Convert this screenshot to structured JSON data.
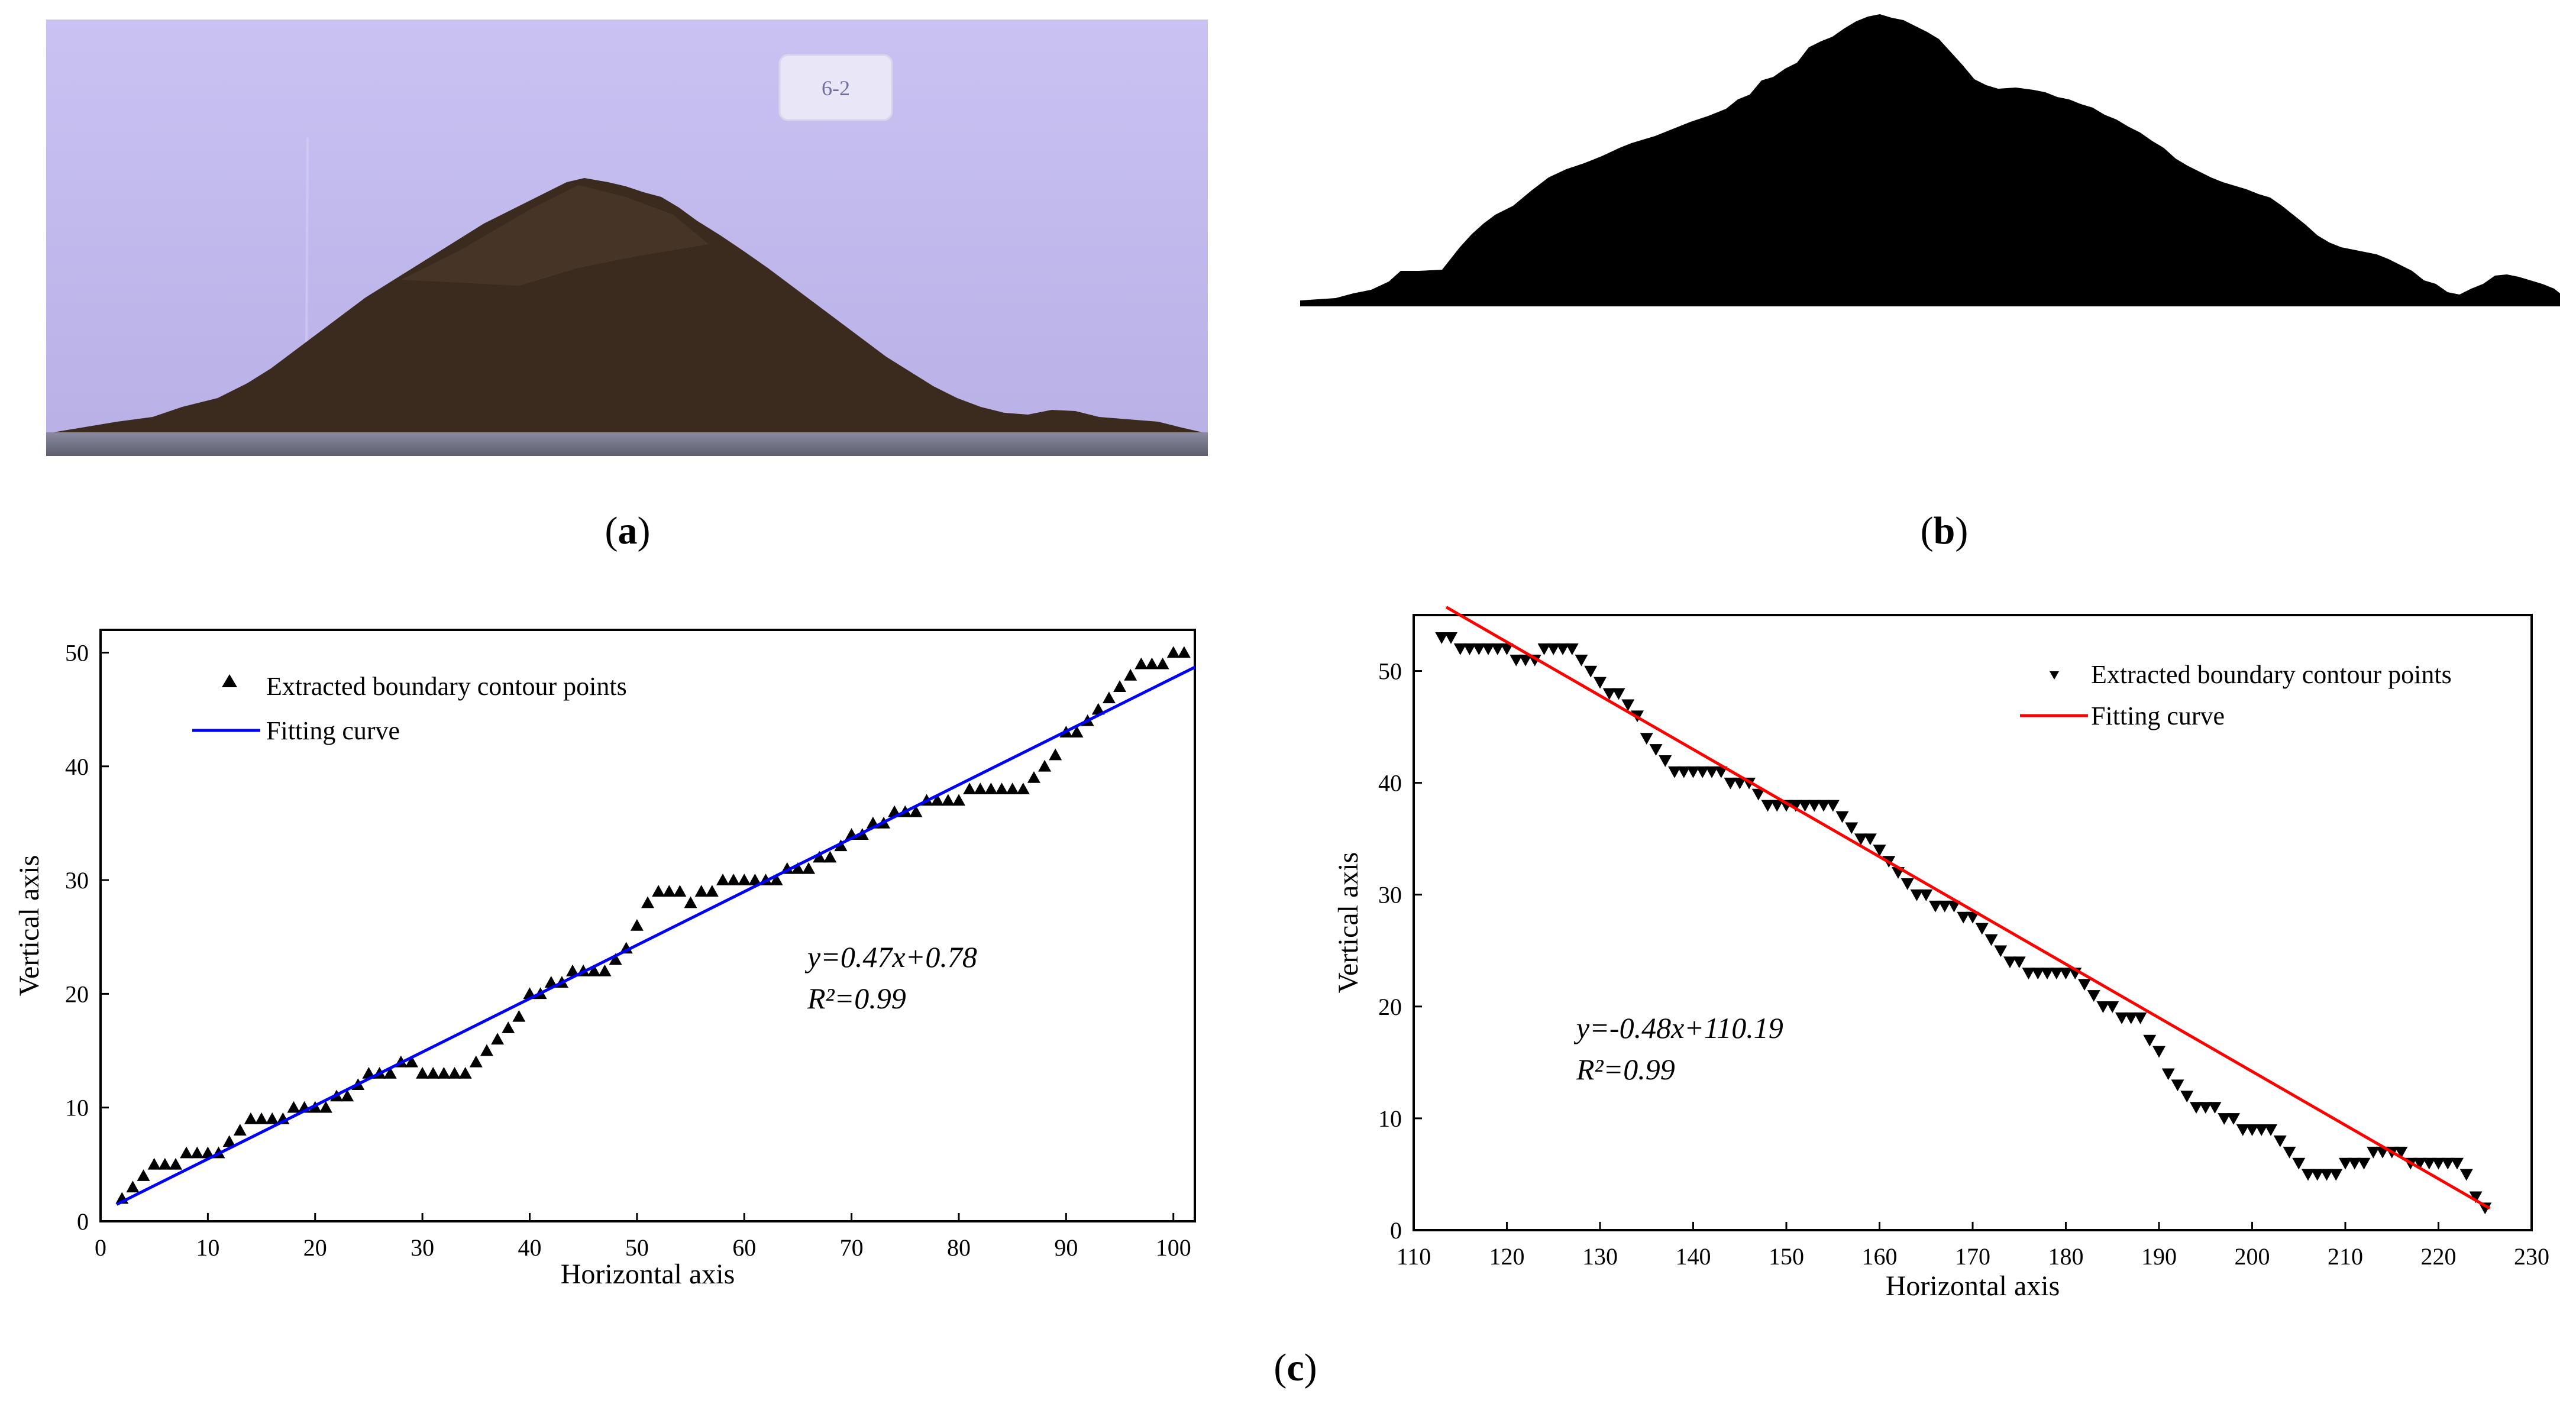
{
  "captions": {
    "a": "a",
    "b": "b",
    "c": "c"
  },
  "photo": {
    "label_card_text": "6-2",
    "background_color": "#c6bff0",
    "soil_color": "#3a2a1e"
  },
  "chart_data": [
    {
      "type": "scatter",
      "panel": "c-left",
      "xlabel": "Horizontal axis",
      "ylabel": "Vertical axis",
      "xlim": [
        0,
        102
      ],
      "ylim": [
        0,
        52
      ],
      "xticks": [
        0,
        10,
        20,
        30,
        40,
        50,
        60,
        70,
        80,
        90,
        100
      ],
      "yticks": [
        0,
        10,
        20,
        30,
        40,
        50
      ],
      "legend": {
        "placement": "top-left",
        "points_label": "Extracted boundary contour points",
        "line_label": "Fitting curve"
      },
      "marker": "triangle-up",
      "line_color": "#0000ff",
      "fit": {
        "slope": 0.47,
        "intercept": 0.78
      },
      "equation": "y=0.47x+0.78",
      "r2_label": "R²=0.99",
      "points": [
        [
          2,
          2
        ],
        [
          3,
          3
        ],
        [
          4,
          4
        ],
        [
          5,
          5
        ],
        [
          6,
          5
        ],
        [
          7,
          5
        ],
        [
          8,
          6
        ],
        [
          9,
          6
        ],
        [
          10,
          6
        ],
        [
          11,
          6
        ],
        [
          12,
          7
        ],
        [
          13,
          8
        ],
        [
          14,
          9
        ],
        [
          15,
          9
        ],
        [
          16,
          9
        ],
        [
          17,
          9
        ],
        [
          18,
          10
        ],
        [
          19,
          10
        ],
        [
          20,
          10
        ],
        [
          21,
          10
        ],
        [
          22,
          11
        ],
        [
          23,
          11
        ],
        [
          24,
          12
        ],
        [
          25,
          13
        ],
        [
          26,
          13
        ],
        [
          27,
          13
        ],
        [
          28,
          14
        ],
        [
          29,
          14
        ],
        [
          30,
          13
        ],
        [
          31,
          13
        ],
        [
          32,
          13
        ],
        [
          33,
          13
        ],
        [
          34,
          13
        ],
        [
          35,
          14
        ],
        [
          36,
          15
        ],
        [
          37,
          16
        ],
        [
          38,
          17
        ],
        [
          39,
          18
        ],
        [
          40,
          20
        ],
        [
          41,
          20
        ],
        [
          42,
          21
        ],
        [
          43,
          21
        ],
        [
          44,
          22
        ],
        [
          45,
          22
        ],
        [
          46,
          22
        ],
        [
          47,
          22
        ],
        [
          48,
          23
        ],
        [
          49,
          24
        ],
        [
          50,
          26
        ],
        [
          51,
          28
        ],
        [
          52,
          29
        ],
        [
          53,
          29
        ],
        [
          54,
          29
        ],
        [
          55,
          28
        ],
        [
          56,
          29
        ],
        [
          57,
          29
        ],
        [
          58,
          30
        ],
        [
          59,
          30
        ],
        [
          60,
          30
        ],
        [
          61,
          30
        ],
        [
          62,
          30
        ],
        [
          63,
          30
        ],
        [
          64,
          31
        ],
        [
          65,
          31
        ],
        [
          66,
          31
        ],
        [
          67,
          32
        ],
        [
          68,
          32
        ],
        [
          69,
          33
        ],
        [
          70,
          34
        ],
        [
          71,
          34
        ],
        [
          72,
          35
        ],
        [
          73,
          35
        ],
        [
          74,
          36
        ],
        [
          75,
          36
        ],
        [
          76,
          36
        ],
        [
          77,
          37
        ],
        [
          78,
          37
        ],
        [
          79,
          37
        ],
        [
          80,
          37
        ],
        [
          81,
          38
        ],
        [
          82,
          38
        ],
        [
          83,
          38
        ],
        [
          84,
          38
        ],
        [
          85,
          38
        ],
        [
          86,
          38
        ],
        [
          87,
          39
        ],
        [
          88,
          40
        ],
        [
          89,
          41
        ],
        [
          90,
          43
        ],
        [
          91,
          43
        ],
        [
          92,
          44
        ],
        [
          93,
          45
        ],
        [
          94,
          46
        ],
        [
          95,
          47
        ],
        [
          96,
          48
        ],
        [
          97,
          49
        ],
        [
          98,
          49
        ],
        [
          99,
          49
        ],
        [
          100,
          50
        ],
        [
          101,
          50
        ]
      ]
    },
    {
      "type": "scatter",
      "panel": "c-right",
      "xlabel": "Horizontal axis",
      "ylabel": "Vertical axis",
      "xlim": [
        110,
        230
      ],
      "ylim": [
        0,
        55
      ],
      "xticks": [
        110,
        120,
        130,
        140,
        150,
        160,
        170,
        180,
        190,
        200,
        210,
        220,
        230
      ],
      "yticks": [
        0,
        10,
        20,
        30,
        40,
        50
      ],
      "legend": {
        "placement": "top-right",
        "points_label": "Extracted boundary contour points",
        "line_label": "Fitting curve"
      },
      "marker": "triangle-down",
      "line_color": "#ff0000",
      "fit": {
        "slope": -0.48,
        "intercept": 110.19
      },
      "equation": "y=-0.48x+110.19",
      "r2_label": "R²=0.99",
      "points": [
        [
          113,
          53
        ],
        [
          114,
          53
        ],
        [
          115,
          52
        ],
        [
          116,
          52
        ],
        [
          117,
          52
        ],
        [
          118,
          52
        ],
        [
          119,
          52
        ],
        [
          120,
          52
        ],
        [
          121,
          51
        ],
        [
          122,
          51
        ],
        [
          123,
          51
        ],
        [
          124,
          52
        ],
        [
          125,
          52
        ],
        [
          126,
          52
        ],
        [
          127,
          52
        ],
        [
          128,
          51
        ],
        [
          129,
          50
        ],
        [
          130,
          49
        ],
        [
          131,
          48
        ],
        [
          132,
          48
        ],
        [
          133,
          47
        ],
        [
          134,
          46
        ],
        [
          135,
          44
        ],
        [
          136,
          43
        ],
        [
          137,
          42
        ],
        [
          138,
          41
        ],
        [
          139,
          41
        ],
        [
          140,
          41
        ],
        [
          141,
          41
        ],
        [
          142,
          41
        ],
        [
          143,
          41
        ],
        [
          144,
          40
        ],
        [
          145,
          40
        ],
        [
          146,
          40
        ],
        [
          147,
          39
        ],
        [
          148,
          38
        ],
        [
          149,
          38
        ],
        [
          150,
          38
        ],
        [
          151,
          38
        ],
        [
          152,
          38
        ],
        [
          153,
          38
        ],
        [
          154,
          38
        ],
        [
          155,
          38
        ],
        [
          156,
          37
        ],
        [
          157,
          36
        ],
        [
          158,
          35
        ],
        [
          159,
          35
        ],
        [
          160,
          34
        ],
        [
          161,
          33
        ],
        [
          162,
          32
        ],
        [
          163,
          31
        ],
        [
          164,
          30
        ],
        [
          165,
          30
        ],
        [
          166,
          29
        ],
        [
          167,
          29
        ],
        [
          168,
          29
        ],
        [
          169,
          28
        ],
        [
          170,
          28
        ],
        [
          171,
          27
        ],
        [
          172,
          26
        ],
        [
          173,
          25
        ],
        [
          174,
          24
        ],
        [
          175,
          24
        ],
        [
          176,
          23
        ],
        [
          177,
          23
        ],
        [
          178,
          23
        ],
        [
          179,
          23
        ],
        [
          180,
          23
        ],
        [
          181,
          23
        ],
        [
          182,
          22
        ],
        [
          183,
          21
        ],
        [
          184,
          20
        ],
        [
          185,
          20
        ],
        [
          186,
          19
        ],
        [
          187,
          19
        ],
        [
          188,
          19
        ],
        [
          189,
          17
        ],
        [
          190,
          16
        ],
        [
          191,
          14
        ],
        [
          192,
          13
        ],
        [
          193,
          12
        ],
        [
          194,
          11
        ],
        [
          195,
          11
        ],
        [
          196,
          11
        ],
        [
          197,
          10
        ],
        [
          198,
          10
        ],
        [
          199,
          9
        ],
        [
          200,
          9
        ],
        [
          201,
          9
        ],
        [
          202,
          9
        ],
        [
          203,
          8
        ],
        [
          204,
          7
        ],
        [
          205,
          6
        ],
        [
          206,
          5
        ],
        [
          207,
          5
        ],
        [
          208,
          5
        ],
        [
          209,
          5
        ],
        [
          210,
          6
        ],
        [
          211,
          6
        ],
        [
          212,
          6
        ],
        [
          213,
          7
        ],
        [
          214,
          7
        ],
        [
          215,
          7
        ],
        [
          216,
          7
        ],
        [
          217,
          6
        ],
        [
          218,
          6
        ],
        [
          219,
          6
        ],
        [
          220,
          6
        ],
        [
          221,
          6
        ],
        [
          222,
          6
        ],
        [
          223,
          5
        ],
        [
          224,
          3
        ],
        [
          225,
          2
        ]
      ]
    }
  ]
}
